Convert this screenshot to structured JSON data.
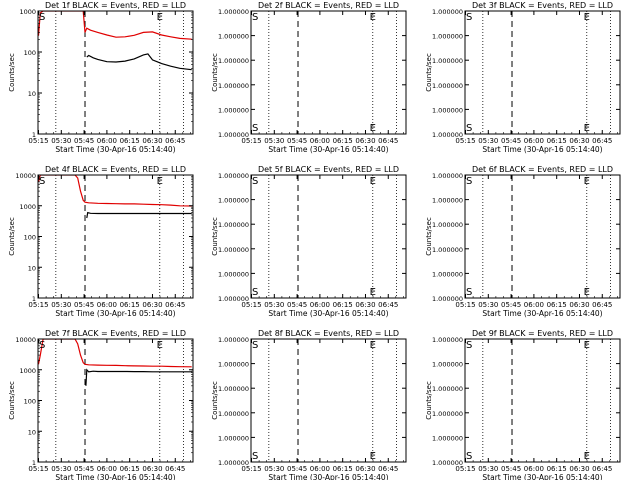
{
  "colors": {
    "events": "#000000",
    "lld": "#e00000",
    "frame": "#000000"
  },
  "common": {
    "xlabel": "Start Time (30-Apr-16 05:14:40)",
    "ylabel": "Counts/sec",
    "xticks": [
      "05:15",
      "05:30",
      "05:45",
      "06:00",
      "06:15",
      "06:30",
      "06:45"
    ],
    "s_marker": "S",
    "e_marker": "E"
  },
  "chart_data": [
    {
      "id": "det1f",
      "type": "line",
      "title": "Det 1f BLACK = Events, RED = LLD",
      "xlim": [
        5.2444,
        6.9444
      ],
      "xscale": "hours",
      "yscale": "log",
      "ylim": [
        1,
        1000
      ],
      "yticks": [
        "1",
        "10",
        "100",
        "1000"
      ],
      "vlines": {
        "dotted": [
          5.44,
          6.58,
          6.84
        ],
        "dashed": [
          5.76
        ]
      },
      "markers": {
        "S": 5.29,
        "E": 6.58
      },
      "series": [
        {
          "color": "lld",
          "x": [
            5.25,
            5.27,
            5.3,
            5.33,
            5.36,
            5.4,
            5.45,
            5.5,
            5.55,
            5.6,
            5.65,
            5.7,
            5.74,
            5.76,
            5.78,
            5.82,
            5.9,
            6.0,
            6.1,
            6.2,
            6.3,
            6.4,
            6.5,
            6.6,
            6.7,
            6.8,
            6.93
          ],
          "values": [
            250,
            900,
            1000,
            1000,
            1000,
            1000,
            1000,
            1000,
            1000,
            1000,
            1000,
            1000,
            1000,
            300,
            380,
            340,
            300,
            260,
            230,
            235,
            255,
            300,
            310,
            260,
            235,
            215,
            205
          ]
        },
        {
          "color": "events",
          "x": [
            5.78,
            5.8,
            5.85,
            5.9,
            6.0,
            6.1,
            6.2,
            6.3,
            6.4,
            6.45,
            6.5,
            6.55,
            6.6,
            6.7,
            6.8,
            6.93
          ],
          "values": [
            75,
            82,
            72,
            66,
            58,
            57,
            60,
            68,
            85,
            90,
            64,
            58,
            52,
            45,
            40,
            37
          ]
        }
      ]
    },
    {
      "id": "det2f",
      "type": "line",
      "title": "Det 2f BLACK = Events, RED = LLD",
      "xlim": [
        5.2444,
        6.9444
      ],
      "xscale": "hours",
      "yscale": "linear",
      "ylim": [
        1,
        1.000001
      ],
      "yticks": [
        "1.000000",
        "1.000000",
        "1.000000",
        "1.000000",
        "1.000000",
        "1.000000"
      ],
      "vlines": {
        "dotted": [
          5.44,
          6.58,
          6.84
        ],
        "dashed": [
          5.76
        ]
      },
      "markers": {
        "S": 5.29,
        "E": 6.58
      },
      "series": []
    },
    {
      "id": "det3f",
      "type": "line",
      "title": "Det 3f BLACK = Events, RED = LLD",
      "xlim": [
        5.2444,
        6.9444
      ],
      "xscale": "hours",
      "yscale": "linear",
      "ylim": [
        1,
        1.000001
      ],
      "yticks": [
        "1.000000",
        "1.000000",
        "1.000000",
        "1.000000",
        "1.000000",
        "1.000000"
      ],
      "vlines": {
        "dotted": [
          5.44,
          6.58,
          6.84
        ],
        "dashed": [
          5.76
        ]
      },
      "markers": {
        "S": 5.29,
        "E": 6.58
      },
      "series": []
    },
    {
      "id": "det4f",
      "type": "line",
      "title": "Det 4f BLACK = Events, RED = LLD",
      "xlim": [
        5.2444,
        6.9444
      ],
      "xscale": "hours",
      "yscale": "log",
      "ylim": [
        1,
        10000
      ],
      "yticks": [
        "1",
        "10",
        "100",
        "1000",
        "10000"
      ],
      "vlines": {
        "dotted": [
          5.44,
          6.58,
          6.84
        ],
        "dashed": [
          5.76
        ]
      },
      "markers": {
        "S": 5.29,
        "E": 6.58
      },
      "series": [
        {
          "color": "lld",
          "x": [
            5.25,
            5.27,
            5.3,
            5.35,
            5.4,
            5.45,
            5.5,
            5.55,
            5.6,
            5.65,
            5.68,
            5.71,
            5.74,
            5.76,
            5.8,
            5.9,
            6.0,
            6.1,
            6.2,
            6.3,
            6.4,
            6.5,
            6.6,
            6.7,
            6.8,
            6.93
          ],
          "values": [
            6000,
            10000,
            10000,
            10000,
            10000,
            10000,
            10000,
            10000,
            10000,
            10000,
            8000,
            3000,
            1500,
            1300,
            1250,
            1200,
            1180,
            1170,
            1150,
            1150,
            1120,
            1100,
            1080,
            1050,
            1000,
            980
          ]
        },
        {
          "color": "events",
          "x": [
            5.78,
            5.79,
            5.82,
            5.9,
            6.0,
            6.1,
            6.2,
            6.3,
            6.4,
            6.5,
            6.6,
            6.7,
            6.8,
            6.93
          ],
          "values": [
            400,
            600,
            570,
            560,
            560,
            560,
            560,
            560,
            560,
            560,
            560,
            560,
            560,
            560
          ]
        }
      ]
    },
    {
      "id": "det5f",
      "type": "line",
      "title": "Det 5f BLACK = Events, RED = LLD",
      "xlim": [
        5.2444,
        6.9444
      ],
      "xscale": "hours",
      "yscale": "linear",
      "ylim": [
        1,
        1.000001
      ],
      "yticks": [
        "1.000000",
        "1.000000",
        "1.000000",
        "1.000000",
        "1.000000",
        "1.000000"
      ],
      "vlines": {
        "dotted": [
          5.44,
          6.58,
          6.84
        ],
        "dashed": [
          5.76
        ]
      },
      "markers": {
        "S": 5.29,
        "E": 6.58
      },
      "series": []
    },
    {
      "id": "det6f",
      "type": "line",
      "title": "Det 6f BLACK = Events, RED = LLD",
      "xlim": [
        5.2444,
        6.9444
      ],
      "xscale": "hours",
      "yscale": "linear",
      "ylim": [
        1,
        1.000001
      ],
      "yticks": [
        "1.000000",
        "1.000000",
        "1.000000",
        "1.000000",
        "1.000000",
        "1.000000"
      ],
      "vlines": {
        "dotted": [
          5.44,
          6.58,
          6.84
        ],
        "dashed": [
          5.76
        ]
      },
      "markers": {
        "S": 5.29,
        "E": 6.58
      },
      "series": []
    },
    {
      "id": "det7f",
      "type": "line",
      "title": "Det 7f BLACK = Events, RED = LLD",
      "xlim": [
        5.2444,
        6.9444
      ],
      "xscale": "hours",
      "yscale": "log",
      "ylim": [
        1,
        10000
      ],
      "yticks": [
        "1",
        "10",
        "100",
        "1000",
        "10000"
      ],
      "vlines": {
        "dotted": [
          5.44,
          6.58,
          6.84
        ],
        "dashed": [
          5.76
        ]
      },
      "markers": {
        "S": 5.29,
        "E": 6.58
      },
      "series": [
        {
          "color": "lld",
          "x": [
            5.25,
            5.27,
            5.3,
            5.35,
            5.4,
            5.45,
            5.5,
            5.55,
            5.6,
            5.65,
            5.68,
            5.71,
            5.74,
            5.76,
            5.8,
            5.9,
            6.0,
            6.1,
            6.2,
            6.3,
            6.4,
            6.5,
            6.6,
            6.7,
            6.8,
            6.93
          ],
          "values": [
            1500,
            3000,
            10000,
            10000,
            10000,
            10000,
            10000,
            10000,
            10000,
            10000,
            7000,
            3000,
            1700,
            1500,
            1450,
            1420,
            1400,
            1380,
            1350,
            1330,
            1320,
            1300,
            1300,
            1280,
            1260,
            1250
          ]
        },
        {
          "color": "events",
          "x": [
            5.77,
            5.78,
            5.8,
            5.85,
            5.9,
            6.0,
            6.1,
            6.2,
            6.3,
            6.4,
            6.5,
            6.6,
            6.7,
            6.8,
            6.93
          ],
          "values": [
            300,
            1000,
            850,
            900,
            880,
            880,
            880,
            880,
            870,
            870,
            860,
            860,
            860,
            860,
            860
          ]
        }
      ]
    },
    {
      "id": "det8f",
      "type": "line",
      "title": "Det 8f BLACK = Events, RED = LLD",
      "xlim": [
        5.2444,
        6.9444
      ],
      "xscale": "hours",
      "yscale": "linear",
      "ylim": [
        1,
        1.000001
      ],
      "yticks": [
        "1.000000",
        "1.000000",
        "1.000000",
        "1.000000",
        "1.000000",
        "1.000000"
      ],
      "vlines": {
        "dotted": [
          5.44,
          6.58,
          6.84
        ],
        "dashed": [
          5.76
        ]
      },
      "markers": {
        "S": 5.29,
        "E": 6.58
      },
      "series": []
    },
    {
      "id": "det9f",
      "type": "line",
      "title": "Det 9f BLACK = Events, RED = LLD",
      "xlim": [
        5.2444,
        6.9444
      ],
      "xscale": "hours",
      "yscale": "linear",
      "ylim": [
        1,
        1.000001
      ],
      "yticks": [
        "1.000000",
        "1.000000",
        "1.000000",
        "1.000000",
        "1.000000",
        "1.000000"
      ],
      "vlines": {
        "dotted": [
          5.44,
          6.58,
          6.84
        ],
        "dashed": [
          5.76
        ]
      },
      "markers": {
        "S": 5.29,
        "E": 6.58
      },
      "series": []
    }
  ]
}
